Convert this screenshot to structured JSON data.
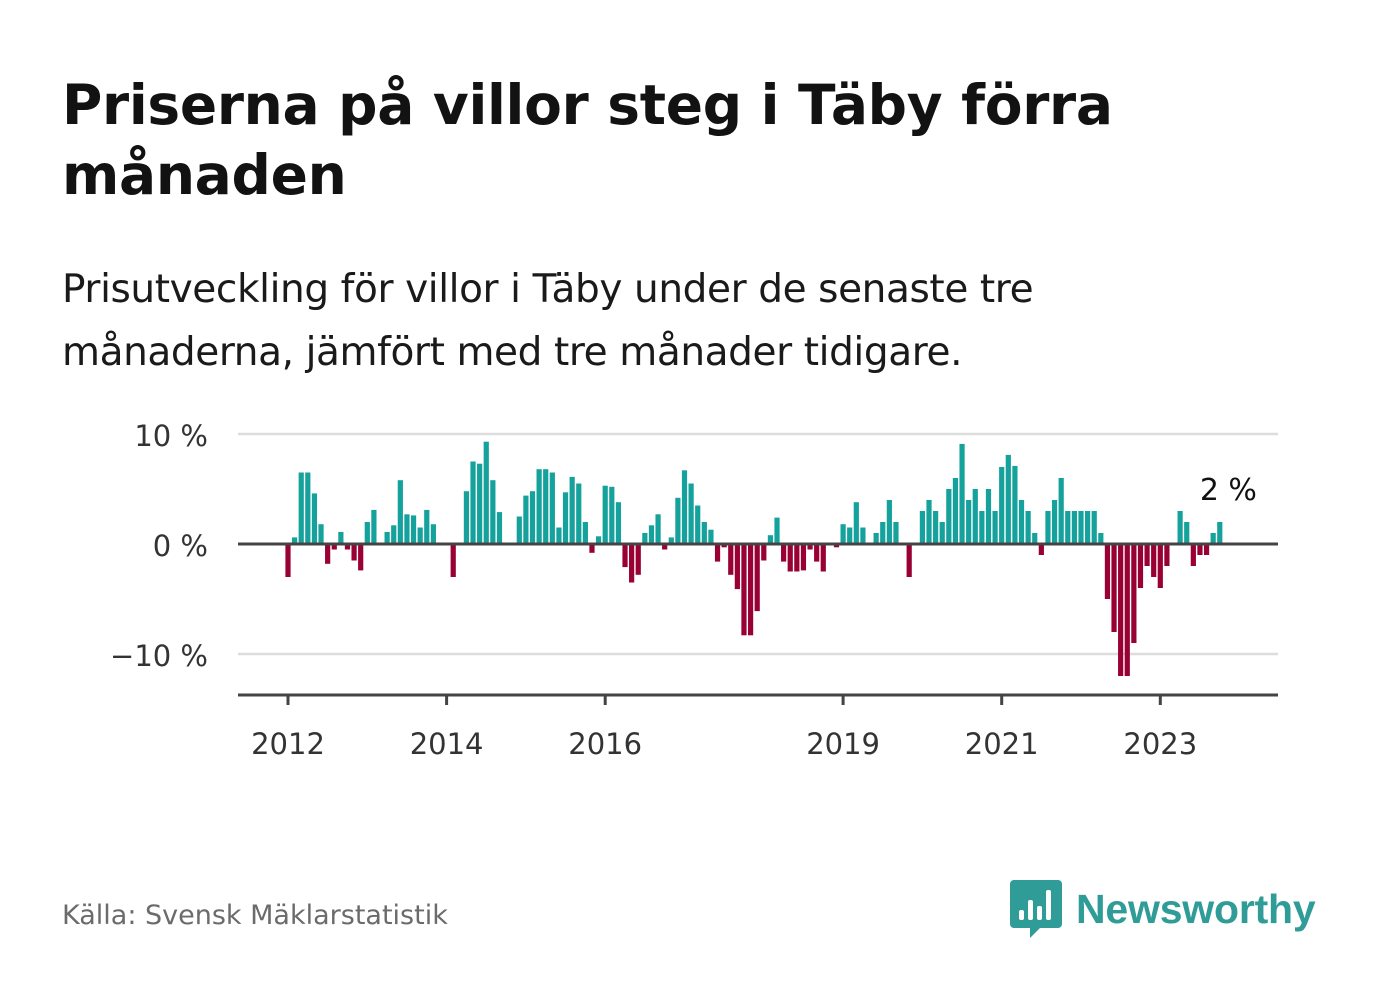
{
  "title": "Priserna på villor steg i Täby förra månaden",
  "subtitle": "Prisutveckling för villor i Täby under de senaste tre månaderna, jämfört med tre månader tidigare.",
  "source": "Källa: Svensk Mäklarstatistik",
  "brand": "Newsworthy",
  "colors": {
    "positive": "#16a29c",
    "negative": "#990033",
    "gridline": "#dddddd",
    "axis": "#444444",
    "brand": "#2f9c97"
  },
  "chart_data": {
    "type": "bar",
    "title": "Priserna på villor steg i Täby förra månaden",
    "xlabel": "",
    "ylabel": "",
    "ylim": [
      -13.5,
      10
    ],
    "yticks": [
      {
        "value": 10,
        "label": "10 %"
      },
      {
        "value": 0,
        "label": "0 %"
      },
      {
        "value": -10,
        "label": "−10 %"
      }
    ],
    "xticks": [
      {
        "year": 2012,
        "label": "2012"
      },
      {
        "year": 2014,
        "label": "2014"
      },
      {
        "year": 2016,
        "label": "2016"
      },
      {
        "year": 2019,
        "label": "2019"
      },
      {
        "year": 2021,
        "label": "2021"
      },
      {
        "year": 2023,
        "label": "2023"
      }
    ],
    "start": "2012-01",
    "end": "2023-11",
    "unit": "%",
    "annotation": {
      "label": "2 %",
      "month": "2023-11",
      "value": 2
    },
    "values": [
      -3,
      0.6,
      6.5,
      6.5,
      4.6,
      1.8,
      -1.8,
      -0.5,
      1.1,
      -0.5,
      -1.5,
      -2.4,
      2.0,
      3.1,
      0,
      1.1,
      1.7,
      5.8,
      2.7,
      2.6,
      1.5,
      3.1,
      1.8,
      0,
      0,
      -3,
      0,
      4.8,
      7.5,
      7.3,
      9.3,
      5.8,
      2.9,
      0,
      0,
      2.5,
      4.4,
      4.8,
      6.8,
      6.8,
      6.5,
      1.5,
      4.7,
      6.1,
      5.5,
      2.0,
      -0.8,
      0.7,
      5.3,
      5.2,
      3.8,
      -2.1,
      -3.5,
      -2.8,
      1.0,
      1.7,
      2.7,
      -0.5,
      0.6,
      4.2,
      6.7,
      5.5,
      3.5,
      2.0,
      1.3,
      -1.6,
      -0.3,
      -2.8,
      -4.1,
      -8.3,
      -8.3,
      -6.1,
      -1.5,
      0.8,
      2.4,
      -1.6,
      -2.5,
      -2.5,
      -2.4,
      -0.5,
      -1.6,
      -2.5,
      0,
      -0.3,
      1.8,
      1.5,
      3.8,
      1.5,
      0,
      1.0,
      2.0,
      4.0,
      2.0,
      0,
      -3.0,
      0,
      3.0,
      4.0,
      3.0,
      2.0,
      5.0,
      6.0,
      9.1,
      4.0,
      5.0,
      3.0,
      5.0,
      3.0,
      7.0,
      8.1,
      7.1,
      4.0,
      3.0,
      1.0,
      -1.0,
      3.0,
      4.0,
      6.0,
      3.0,
      3.0,
      3.0,
      3.0,
      3.0,
      1.0,
      -5.0,
      -8.0,
      -12.0,
      -12.0,
      -9.0,
      -4.0,
      -2.0,
      -3.0,
      -4.0,
      -2.0,
      0,
      3.0,
      2.0,
      -2.0,
      -1.0,
      -1.0,
      1.0,
      2.0
    ]
  }
}
